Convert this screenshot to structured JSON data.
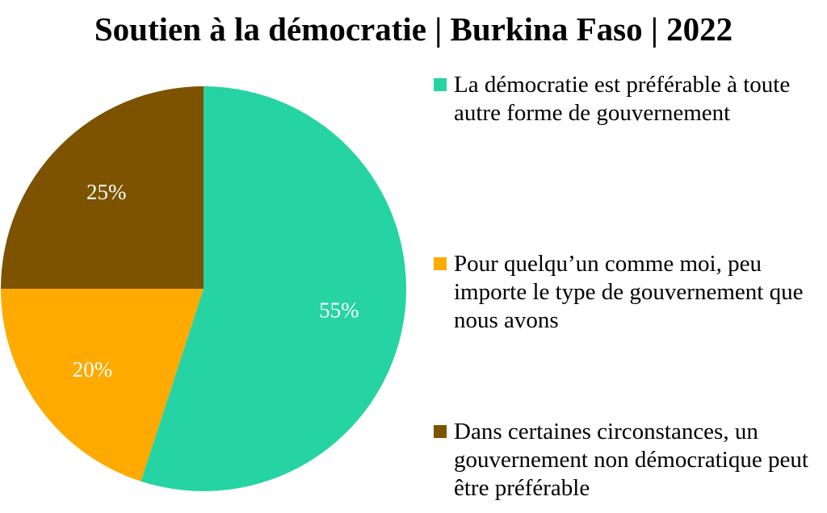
{
  "chart_data": {
    "type": "pie",
    "title": "Soutien à la démocratie | Burkina Faso | 2022",
    "slices": [
      {
        "name": "La démocratie est préférable à toute autre forme de gouvernement",
        "value": 55,
        "label": "55%",
        "color": "#26D3A3"
      },
      {
        "name": "Pour quelqu’un comme moi, peu importe le type de gouvernement que nous avons",
        "value": 20,
        "label": "20%",
        "color": "#FFAA00"
      },
      {
        "name": "Dans certaines circonstances, un gouvernement non démocratique peut être préférable",
        "value": 25,
        "label": "25%",
        "color": "#7D5300"
      }
    ],
    "legend_position": "right",
    "start_angle": "top",
    "direction": "clockwise"
  }
}
